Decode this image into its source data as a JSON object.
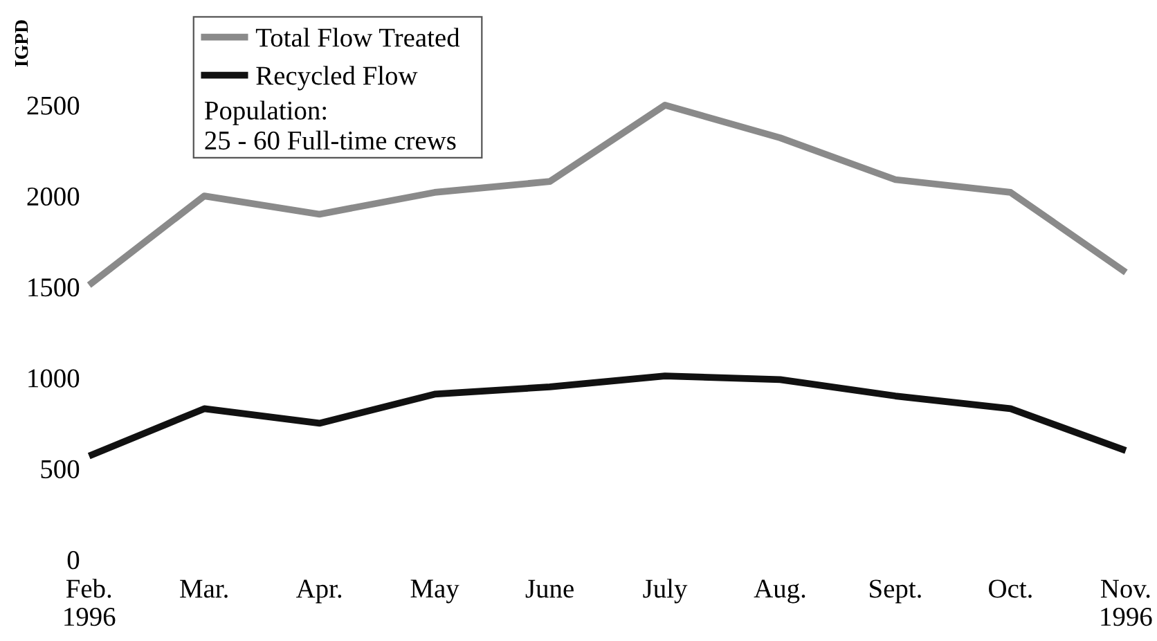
{
  "chart_data": {
    "type": "line",
    "ylabel": "IGPD",
    "categories": [
      "Feb.\n1996",
      "Mar.",
      "Apr.",
      "May",
      "June",
      "July",
      "Aug.",
      "Sept.",
      "Oct.",
      "Nov.\n1996"
    ],
    "series": [
      {
        "name": "Total Flow Treated",
        "color": "#8a8a8a",
        "values": [
          1510,
          2000,
          1900,
          2020,
          2080,
          2500,
          2320,
          2090,
          2020,
          1580
        ]
      },
      {
        "name": "Recycled Flow",
        "color": "#111111",
        "values": [
          570,
          830,
          750,
          910,
          950,
          1010,
          990,
          900,
          830,
          600
        ]
      }
    ],
    "ylim": [
      0,
      2500
    ],
    "yticks": [
      0,
      500,
      1000,
      1500,
      2000,
      2500
    ],
    "grid": false,
    "legend": "top left",
    "marker": "none",
    "line_style": "solid",
    "annotations": [
      "Population:\n25 - 60 Full-time crews"
    ]
  }
}
